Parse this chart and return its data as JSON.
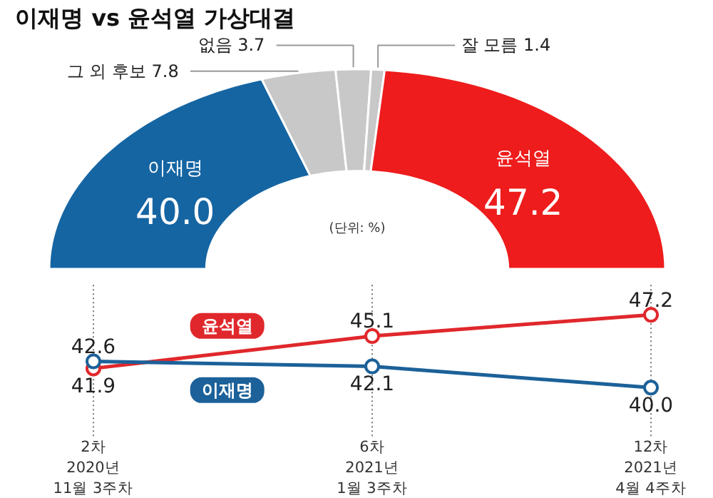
{
  "chart_data": [
    {
      "type": "donut",
      "title": "이재명 vs 윤석열 가상대결",
      "annotations": [
        "(단위: %)"
      ],
      "categories": [
        "이재명",
        "그 외 후보",
        "없음",
        "잘 모름",
        "윤석열"
      ],
      "values": [
        40.0,
        7.8,
        3.7,
        1.4,
        47.2
      ],
      "value_labels": [
        "40.0",
        "7.8",
        "3.7",
        "1.4",
        "47.2"
      ],
      "colors": [
        "#1565a3",
        "#c8c8c8",
        "#c8c8c8",
        "#c8c8c8",
        "#ee1c1c"
      ]
    },
    {
      "type": "line",
      "categories": [
        "2차\n2020년\n11월 3주차",
        "6차\n2021년\n1월 3주차",
        "12차\n2021년\n4월 4주차"
      ],
      "series": [
        {
          "name": "윤석열",
          "color": "#e0282c",
          "values": [
            41.9,
            45.1,
            47.2
          ],
          "value_labels": [
            "41.9",
            "45.1",
            "47.2"
          ]
        },
        {
          "name": "이재명",
          "color": "#1c6199",
          "values": [
            42.6,
            42.1,
            40.0
          ],
          "value_labels": [
            "42.6",
            "42.1",
            "40.0"
          ]
        }
      ],
      "marker": "circle",
      "line_style": "solid",
      "grid": "x"
    }
  ]
}
